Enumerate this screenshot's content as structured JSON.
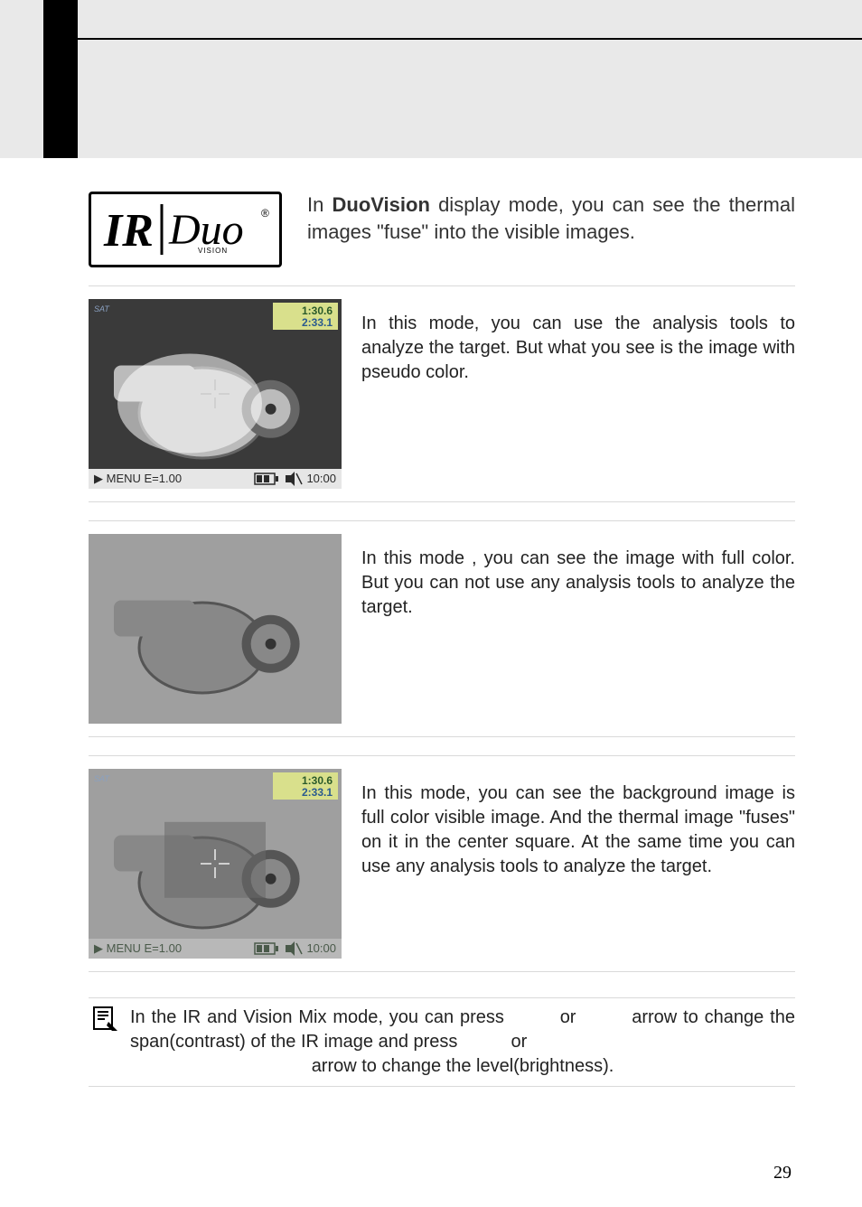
{
  "logo": {
    "part1": "IR",
    "part2": "Duo",
    "sub": "VISION",
    "reg": "®"
  },
  "intro": {
    "prefix": "In ",
    "bold": "DuoVision",
    "rest": " display mode, you can see the thermal images \"fuse\" into the visible images."
  },
  "sections": [
    {
      "desc": "In this mode, you can use the analysis tools to analyze the target. But what you see is the image with pseudo color.",
      "overlay": {
        "line1": "1:30.6",
        "line2": "2:33.1",
        "bg": "#d9e08c",
        "fg1": "#2a5a2a",
        "fg2": "#2a5a8f"
      },
      "status": {
        "menu": "▶ MENU E=1.00",
        "time": "10:00",
        "bg": "#e6e6e6",
        "fg": "#2a2a2a"
      },
      "crosshair": true,
      "light_bg": false
    },
    {
      "desc": "In this mode , you can see the image with full color. But you can not use any analysis tools to analyze the target.",
      "overlay": null,
      "status": null,
      "crosshair": false,
      "light_bg": true
    },
    {
      "desc": "In this mode, you can see the background image is full color visible image. And the thermal image \"fuses\" on it in the center square. At the same time you can use any analysis tools to analyze the target.",
      "overlay": {
        "line1": "1:30.6",
        "line2": "2:33.1",
        "bg": "#d9e08c",
        "fg1": "#2a5a2a",
        "fg2": "#2a5a8f"
      },
      "status": {
        "menu": "▶ MENU E=1.00",
        "time": "10:00",
        "bg": "#b8b8b8",
        "fg": "#4a5a4a"
      },
      "crosshair": true,
      "light_bg": true,
      "center_box": true
    }
  ],
  "note": {
    "line": "In the IR and Vision Mix mode, you can press",
    "or1": "or",
    "arrow": "arrow",
    "line2": "to change the span(contrast) of the IR image and press",
    "or2": "or",
    "line3": "arrow to change the level(brightness)."
  },
  "pagenum": "29",
  "colors": {
    "band": "#e9e9e9",
    "stripe": "#000000",
    "hr": "#d9d9d9",
    "text": "#222222"
  }
}
